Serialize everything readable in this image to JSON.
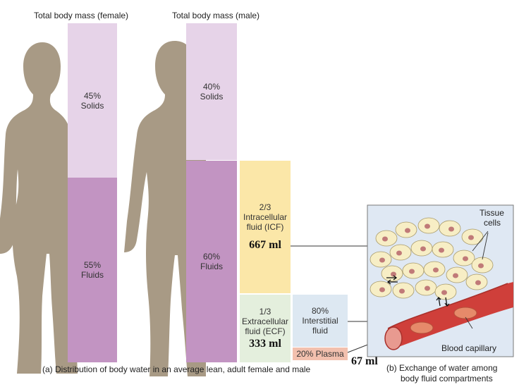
{
  "female": {
    "header": "Total body mass (female)",
    "solids": {
      "percent": "45%",
      "label": "Solids"
    },
    "fluids": {
      "percent": "55%",
      "label": "Fluids"
    }
  },
  "male": {
    "header": "Total body mass (male)",
    "solids": {
      "percent": "40%",
      "label": "Solids"
    },
    "fluids": {
      "percent": "60%",
      "label": "Fluids"
    }
  },
  "icf": {
    "fraction": "2/3",
    "line1": "Intracellular",
    "line2": "fluid (ICF)",
    "volume": "667 ml"
  },
  "ecf": {
    "fraction": "1/3",
    "line1": "Extracellular",
    "line2": "fluid (ECF)",
    "volume": "333 ml"
  },
  "interstitial": {
    "percent": "80%",
    "line1": "Interstitial",
    "line2": "fluid"
  },
  "plasma": {
    "label": "20% Plasma",
    "volume": "67 ml"
  },
  "inset": {
    "tissue_line1": "Tissue",
    "tissue_line2": "cells",
    "capillary": "Blood capillary"
  },
  "captions": {
    "a": "(a) Distribution of body water in an average lean, adult female and male",
    "b_line1": "(b) Exchange of water among",
    "b_line2": "body fluid compartments"
  },
  "colors": {
    "silhouette": "#a89a85",
    "solids": "#e6d3e8",
    "fluids": "#c294c2",
    "icf": "#fbe7a8",
    "ecf": "#e4efdd",
    "interstitial": "#dde8f2",
    "plasma": "#f2c0ae",
    "inset_bg": "#dfe8f3",
    "cell": "#f7eec5",
    "nucleus": "#c07a78",
    "vessel": "#cf3f3a"
  }
}
